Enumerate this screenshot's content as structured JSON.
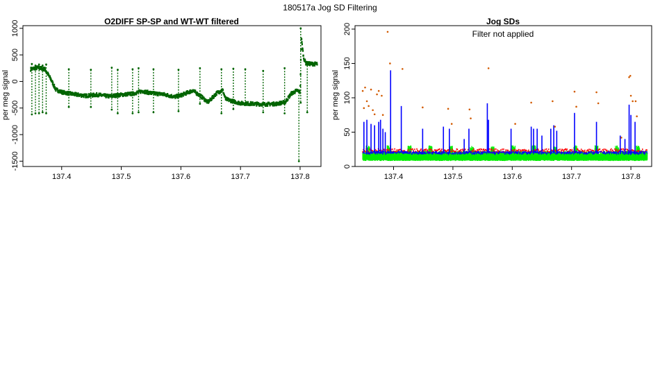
{
  "suptitle": "180517a   Jog SD Filtering",
  "chart_data": [
    {
      "type": "scatter",
      "title": "O2DIFF SP-SP and WT-WT filtered",
      "xlabel": "",
      "ylabel": "per meg signal",
      "xlim": [
        137.335,
        137.835
      ],
      "ylim": [
        -1600,
        1050
      ],
      "xticks": [
        137.4,
        137.5,
        137.6,
        137.7,
        137.8
      ],
      "yticks": [
        -1500,
        -1000,
        -500,
        0,
        500,
        1000
      ],
      "grid": false,
      "series": [
        {
          "color": "#006400",
          "baseline": [
            [
              137.348,
              230
            ],
            [
              137.36,
              260
            ],
            [
              137.372,
              230
            ],
            [
              137.382,
              40
            ],
            [
              137.39,
              -150
            ],
            [
              137.4,
              -200
            ],
            [
              137.42,
              -240
            ],
            [
              137.44,
              -270
            ],
            [
              137.46,
              -250
            ],
            [
              137.48,
              -280
            ],
            [
              137.5,
              -250
            ],
            [
              137.52,
              -230
            ],
            [
              137.535,
              -180
            ],
            [
              137.55,
              -220
            ],
            [
              137.57,
              -240
            ],
            [
              137.59,
              -290
            ],
            [
              137.6,
              -260
            ],
            [
              137.62,
              -170
            ],
            [
              137.635,
              -290
            ],
            [
              137.645,
              -390
            ],
            [
              137.65,
              -340
            ],
            [
              137.66,
              -220
            ],
            [
              137.67,
              -160
            ],
            [
              137.675,
              -330
            ],
            [
              137.69,
              -380
            ],
            [
              137.7,
              -410
            ],
            [
              137.72,
              -420
            ],
            [
              137.74,
              -430
            ],
            [
              137.76,
              -420
            ],
            [
              137.775,
              -390
            ],
            [
              137.785,
              -230
            ],
            [
              137.795,
              -170
            ],
            [
              137.8,
              -200
            ],
            [
              137.802,
              820
            ],
            [
              137.806,
              440
            ],
            [
              137.81,
              340
            ],
            [
              137.82,
              330
            ],
            [
              137.828,
              330
            ]
          ],
          "spikes": [
            [
              137.35,
              330,
              -620
            ],
            [
              137.356,
              300,
              -600
            ],
            [
              137.362,
              320,
              -600
            ],
            [
              137.368,
              300,
              -580
            ],
            [
              137.374,
              320,
              -600
            ],
            [
              137.412,
              230,
              -480
            ],
            [
              137.449,
              220,
              -480
            ],
            [
              137.484,
              260,
              -530
            ],
            [
              137.494,
              220,
              -600
            ],
            [
              137.519,
              230,
              -600
            ],
            [
              137.529,
              250,
              -580
            ],
            [
              137.554,
              230,
              -580
            ],
            [
              137.596,
              220,
              -560
            ],
            [
              137.632,
              250,
              -420
            ],
            [
              137.668,
              230,
              -600
            ],
            [
              137.688,
              240,
              -520
            ],
            [
              137.708,
              230,
              -420
            ],
            [
              137.738,
              200,
              -580
            ],
            [
              137.774,
              250,
              -600
            ],
            [
              137.798,
              -200,
              -1500
            ],
            [
              137.801,
              1000,
              -400
            ],
            [
              137.812,
              350,
              -580
            ]
          ]
        }
      ]
    },
    {
      "type": "line",
      "title": "Jog SDs",
      "annotation": "Filter not applied",
      "xlabel": "",
      "ylabel": "per meg signal",
      "xlim": [
        137.335,
        137.835
      ],
      "ylim": [
        0,
        205
      ],
      "xticks": [
        137.4,
        137.5,
        137.6,
        137.7,
        137.8
      ],
      "yticks": [
        0,
        50,
        100,
        150,
        200
      ],
      "grid": false,
      "series": [
        {
          "color": "#0000ff",
          "base": 20,
          "peaks": [
            [
              137.35,
              65
            ],
            [
              137.355,
              68
            ],
            [
              137.362,
              62
            ],
            [
              137.368,
              60
            ],
            [
              137.375,
              65
            ],
            [
              137.378,
              68
            ],
            [
              137.382,
              55
            ],
            [
              137.386,
              50
            ],
            [
              137.395,
              140
            ],
            [
              137.413,
              88
            ],
            [
              137.449,
              55
            ],
            [
              137.484,
              58
            ],
            [
              137.494,
              55
            ],
            [
              137.519,
              40
            ],
            [
              137.527,
              55
            ],
            [
              137.558,
              92
            ],
            [
              137.56,
              68
            ],
            [
              137.598,
              55
            ],
            [
              137.632,
              58
            ],
            [
              137.636,
              55
            ],
            [
              137.642,
              55
            ],
            [
              137.65,
              45
            ],
            [
              137.665,
              55
            ],
            [
              137.67,
              60
            ],
            [
              137.675,
              52
            ],
            [
              137.705,
              78
            ],
            [
              137.742,
              65
            ],
            [
              137.782,
              45
            ],
            [
              137.79,
              40
            ],
            [
              137.797,
              90
            ],
            [
              137.8,
              75
            ],
            [
              137.807,
              65
            ]
          ]
        },
        {
          "color": "#ff0000",
          "base": 22
        },
        {
          "color": "#00ee00",
          "base": 12
        },
        {
          "color": "#d25a00",
          "points": [
            [
              137.348,
              110
            ],
            [
              137.35,
              85
            ],
            [
              137.352,
              115
            ],
            [
              137.355,
              95
            ],
            [
              137.358,
              88
            ],
            [
              137.362,
              112
            ],
            [
              137.365,
              82
            ],
            [
              137.368,
              76
            ],
            [
              137.372,
              105
            ],
            [
              137.375,
              110
            ],
            [
              137.38,
              103
            ],
            [
              137.382,
              75
            ],
            [
              137.39,
              196
            ],
            [
              137.394,
              150
            ],
            [
              137.415,
              142
            ],
            [
              137.449,
              86
            ],
            [
              137.492,
              84
            ],
            [
              137.498,
              62
            ],
            [
              137.528,
              83
            ],
            [
              137.53,
              70
            ],
            [
              137.56,
              143
            ],
            [
              137.605,
              62
            ],
            [
              137.632,
              93
            ],
            [
              137.668,
              95
            ],
            [
              137.672,
              58
            ],
            [
              137.705,
              109
            ],
            [
              137.708,
              87
            ],
            [
              137.742,
              108
            ],
            [
              137.745,
              92
            ],
            [
              137.784,
              42
            ],
            [
              137.797,
              130
            ],
            [
              137.799,
              132
            ],
            [
              137.8,
              103
            ],
            [
              137.803,
              95
            ],
            [
              137.808,
              95
            ],
            [
              137.81,
              73
            ]
          ]
        }
      ]
    }
  ]
}
